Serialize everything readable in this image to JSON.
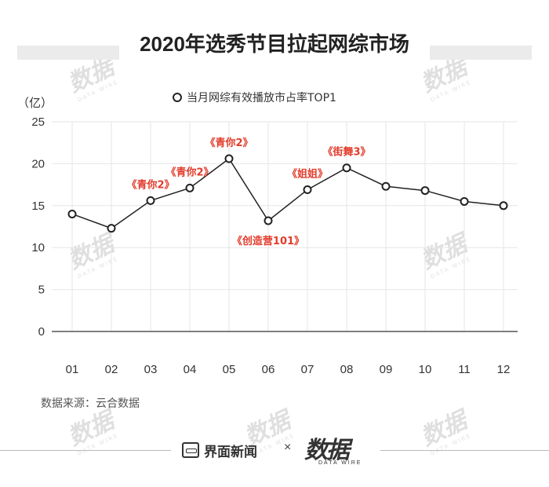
{
  "title": "2020年选秀节目拉起网综市场",
  "source": "数据来源：云合数据",
  "footer": {
    "brand1": "界面新闻",
    "separator": "×",
    "brand2": "数据",
    "brand2_sub": "DATA WIRE"
  },
  "watermark": {
    "text": "数据",
    "sub": "DATA WIRE"
  },
  "colors": {
    "line": "#222222",
    "annotation": "#e23b2b",
    "grid": "#e6e6e6",
    "axis": "#333333"
  },
  "chart_data": {
    "type": "line",
    "title": "2020年选秀节目拉起网综市场",
    "ylabel": "（亿）",
    "ylim": [
      0,
      25
    ],
    "yticks": [
      0,
      5,
      10,
      15,
      20,
      25
    ],
    "categories": [
      "01",
      "02",
      "03",
      "04",
      "05",
      "06",
      "07",
      "08",
      "09",
      "10",
      "11",
      "12"
    ],
    "series": [
      {
        "name": "当月网综有效播放市占率TOP1",
        "values": [
          14.0,
          12.3,
          15.6,
          17.1,
          20.6,
          13.2,
          16.9,
          19.5,
          17.3,
          16.8,
          15.5,
          15.0
        ]
      }
    ],
    "annotations": [
      {
        "index": 2,
        "text": "《青你2》",
        "position": "above"
      },
      {
        "index": 3,
        "text": "《青你2》",
        "position": "above"
      },
      {
        "index": 4,
        "text": "《青你2》",
        "position": "above"
      },
      {
        "index": 5,
        "text": "《创造营101》",
        "position": "below"
      },
      {
        "index": 6,
        "text": "《姐姐》",
        "position": "above"
      },
      {
        "index": 7,
        "text": "《街舞3》",
        "position": "above"
      }
    ],
    "legend": {
      "position": "top-center"
    },
    "grid": true
  }
}
